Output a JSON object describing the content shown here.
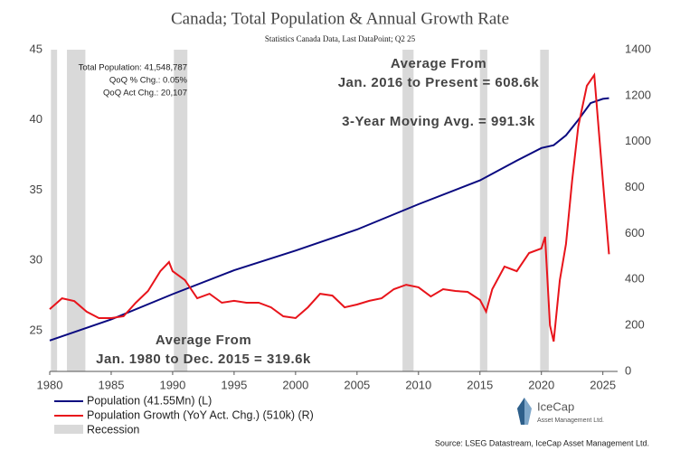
{
  "chart_data": {
    "type": "line",
    "title": "Canada; Total Population & Annual Growth Rate",
    "subtitle": "Statistics Canada Data, Last DataPoint; Q2 25",
    "info": [
      "Total Population: 41,548,787",
      "QoQ % Chg.: 0.05%",
      "QoQ Act Chg.: 20,107"
    ],
    "annotations": [
      "Average From",
      "Jan. 2016 to Present = 608.6k",
      "3-Year Moving Avg. = 991.3k",
      "Average From",
      "Jan. 1980 to Dec. 2015 = 319.6k"
    ],
    "source": "Source:  LSEG Datastream, IceCap Asset Management Ltd.",
    "logo": [
      "IceCap",
      "Asset Management Ltd."
    ],
    "xlim": [
      1980,
      2026.2
    ],
    "xticks": [
      1980,
      1985,
      1990,
      1995,
      2000,
      2005,
      2010,
      2015,
      2020,
      2025
    ],
    "ylim": [
      22.1,
      45
    ],
    "yticks": [
      25,
      30,
      35,
      40,
      45
    ],
    "y2lim": [
      0,
      1400
    ],
    "y2ticks": [
      0,
      200,
      400,
      600,
      800,
      1000,
      1200,
      1400
    ],
    "recession_name": "Recession",
    "recession_color": "#d9d9d9",
    "recessions": [
      [
        1980.1,
        1980.6
      ],
      [
        1981.4,
        1982.9
      ],
      [
        1990.1,
        1991.2
      ],
      [
        2008.7,
        2009.6
      ],
      [
        2015,
        2015.6
      ],
      [
        2019.9,
        2020.6
      ]
    ],
    "series": [
      {
        "name": "Population (41.55Mn) (L)",
        "color": "#0a0a80",
        "x": [
          1980,
          1985,
          1990,
          1995,
          2000,
          2005,
          2010,
          2015,
          2018,
          2020,
          2021,
          2022,
          2023,
          2024,
          2025,
          2025.5
        ],
        "values": [
          24.3,
          25.8,
          27.6,
          29.3,
          30.7,
          32.2,
          34.0,
          35.7,
          37.1,
          38.0,
          38.2,
          38.9,
          40.0,
          41.2,
          41.5,
          41.55
        ]
      },
      {
        "name": "Population Growth (YoY Act. Chg.) (510k) (R)",
        "color": "#e8141b",
        "axis": "y2",
        "x": [
          1980,
          1981,
          1982,
          1983,
          1984,
          1985,
          1986,
          1987,
          1988,
          1989,
          1989.7,
          1990,
          1991,
          1992,
          1993,
          1994,
          1995,
          1996,
          1997,
          1998,
          1999,
          2000,
          2001,
          2002,
          2003,
          2004,
          2005,
          2006,
          2007,
          2008,
          2009,
          2010,
          2011,
          2012,
          2013,
          2014,
          2015,
          2015.5,
          2016,
          2017,
          2018,
          2019,
          2020,
          2020.3,
          2020.7,
          2021,
          2021.5,
          2022,
          2022.5,
          2023,
          2023.7,
          2024.3,
          2025,
          2025.5
        ],
        "values": [
          271,
          318,
          306,
          260,
          232,
          232,
          240,
          299,
          350,
          436,
          476,
          436,
          397,
          318,
          338,
          299,
          307,
          299,
          299,
          279,
          240,
          232,
          279,
          338,
          330,
          279,
          291,
          307,
          318,
          358,
          377,
          366,
          326,
          358,
          350,
          346,
          311,
          260,
          358,
          456,
          436,
          515,
          535,
          586,
          200,
          130,
          397,
          554,
          830,
          1066,
          1243,
          1290,
          830,
          510
        ]
      }
    ]
  }
}
